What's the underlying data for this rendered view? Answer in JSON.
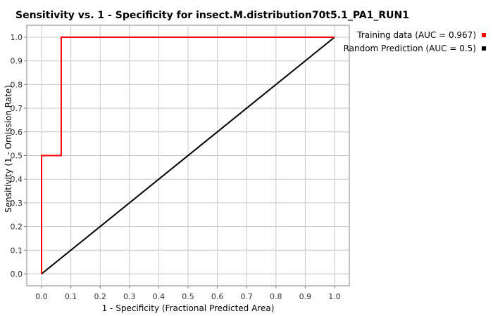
{
  "chart_data": {
    "type": "line",
    "title": "Sensitivity vs. 1 - Specificity for insect.M.distribution70t5.1_PA1_RUN1",
    "xlabel": "1 - Specificity  (Fractional Predicted Area)",
    "ylabel": "Sensitivity (1 - Omission Rate)",
    "xlim": [
      0,
      1
    ],
    "ylim": [
      0,
      1
    ],
    "xticks": [
      "0.0",
      "0.1",
      "0.2",
      "0.3",
      "0.4",
      "0.5",
      "0.6",
      "0.7",
      "0.8",
      "0.9",
      "1.0"
    ],
    "yticks": [
      "0.0",
      "0.1",
      "0.2",
      "0.3",
      "0.4",
      "0.5",
      "0.6",
      "0.7",
      "0.8",
      "0.9",
      "1.0"
    ],
    "grid": true,
    "legend_position": "top-right",
    "series": [
      {
        "name": "Training data (AUC = 0.967)",
        "color": "#ff0000",
        "x": [
          0,
          0,
          0.067,
          0.067,
          1
        ],
        "y": [
          0,
          0.5,
          0.5,
          1,
          1
        ]
      },
      {
        "name": "Random Prediction (AUC = 0.5)",
        "color": "#000000",
        "x": [
          0,
          1
        ],
        "y": [
          0,
          1
        ]
      }
    ]
  }
}
